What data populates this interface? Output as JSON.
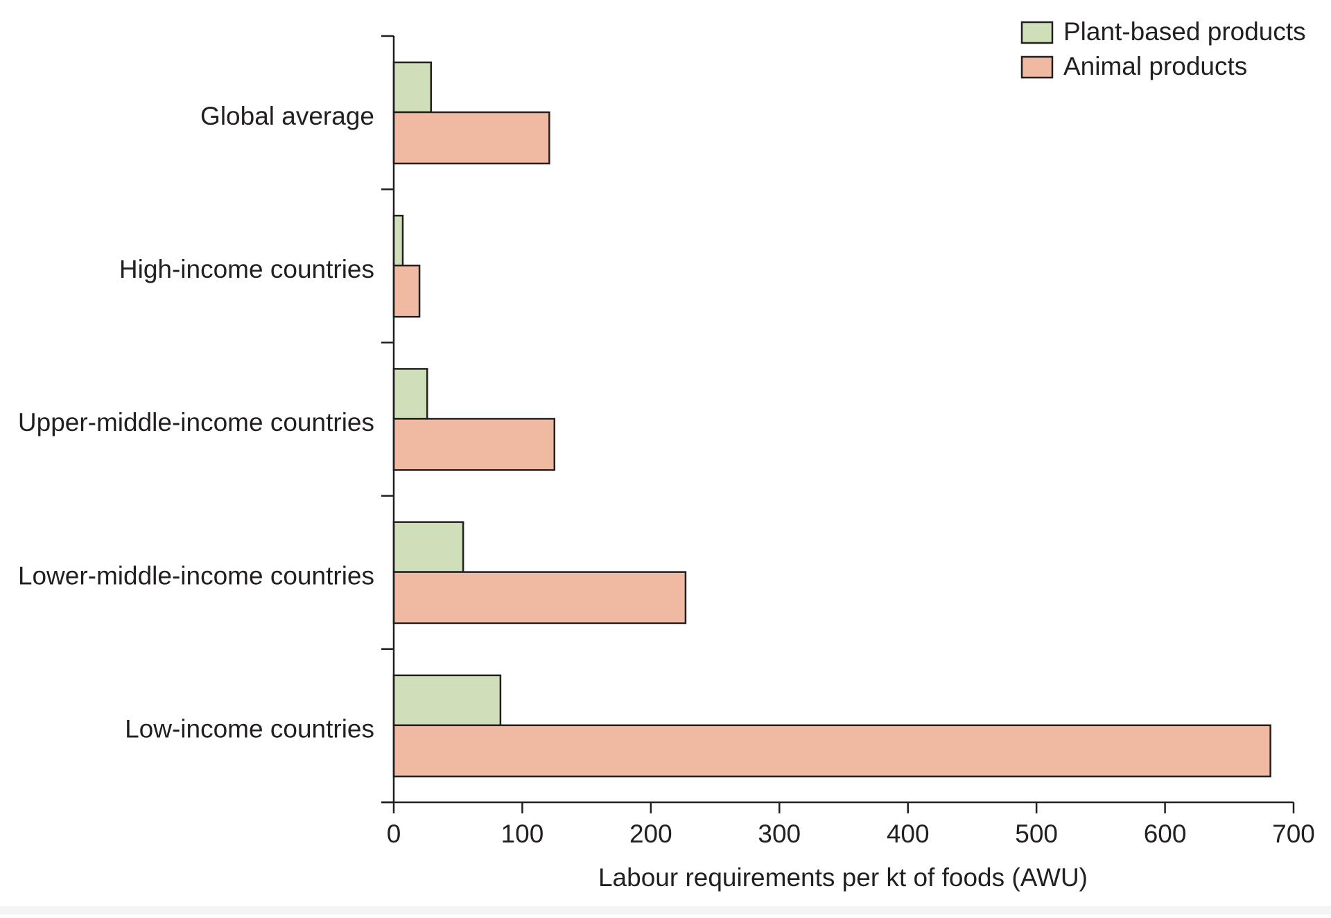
{
  "chart_data": {
    "type": "bar",
    "orientation": "horizontal",
    "categories": [
      "Global average",
      "High-income countries",
      "Upper-middle-income countries",
      "Lower-middle-income countries",
      "Low-income countries"
    ],
    "series": [
      {
        "name": "Plant-based products",
        "color": "#cfdfba",
        "values": [
          29,
          7,
          26,
          54,
          83
        ]
      },
      {
        "name": "Animal products",
        "color": "#f0b9a2",
        "values": [
          121,
          20,
          125,
          227,
          682
        ]
      }
    ],
    "xlabel": "Labour requirements per kt of foods (AWU)",
    "ylabel": "",
    "xlim": [
      0,
      700
    ],
    "xticks": [
      "0",
      "100",
      "200",
      "300",
      "400",
      "500",
      "600",
      "700"
    ],
    "grid": false,
    "legend": "top-right"
  }
}
